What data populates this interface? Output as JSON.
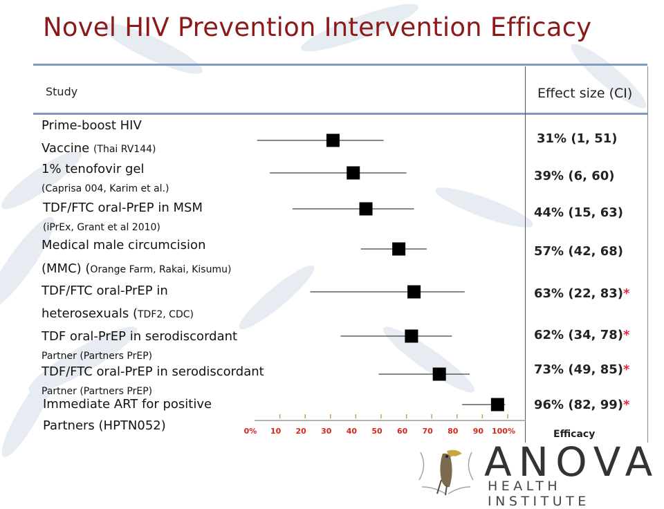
{
  "title": "Novel HIV Prevention Intervention Efficacy",
  "columns": {
    "study": "Study",
    "effect": "Effect size (CI)"
  },
  "studies": [
    {
      "line1": "Prime-boost HIV",
      "line2_main": "Vaccine ",
      "line2_sub": "(Thai RV144)",
      "effect": "31% (1, 51)",
      "star": ""
    },
    {
      "line1": "1% tenofovir gel",
      "line2_main": "",
      "line2_sub": "(Caprisa 004, Karim et al.)",
      "effect": "39% (6, 60)",
      "star": ""
    },
    {
      "line1": "TDF/FTC oral-PrEP in MSM",
      "line2_main": "",
      "line2_sub": "(iPrEx, Grant et al 2010)",
      "effect": "44% (15, 63)",
      "star": ""
    },
    {
      "line1": "Medical male circumcision",
      "line2_main": "(MMC) (",
      "line2_sub": "Orange Farm, Rakai, Kisumu)",
      "effect": "57% (42, 68)",
      "star": ""
    },
    {
      "line1": "TDF/FTC oral-PrEP in",
      "line2_main": "heterosexuals (",
      "line2_sub": "TDF2, CDC)",
      "effect": "63% (22, 83)",
      "star": "*"
    },
    {
      "line1": "TDF oral-PrEP in serodiscordant",
      "line2_main": "",
      "line2_sub": "Partner (Partners PrEP)",
      "effect": "62% (34, 78)",
      "star": "*"
    },
    {
      "line1": "TDF/FTC oral-PrEP in serodiscordant",
      "line2_main": "",
      "line2_sub": "Partner (Partners PrEP)",
      "effect": "73% (49, 85)",
      "star": "*"
    },
    {
      "line1": "Immediate ART for positive",
      "line2_main": "Partners (HPTN052)",
      "line2_sub": "",
      "effect": "96% (82, 99)",
      "star": "*"
    }
  ],
  "chart_data": {
    "type": "forest",
    "xlabel": "Efficacy",
    "xlim": [
      0,
      100
    ],
    "ticks": [
      "0%",
      "10",
      "20",
      "30",
      "40",
      "50",
      "60",
      "70",
      "80",
      "90",
      "100%"
    ],
    "tick_values": [
      0,
      10,
      20,
      30,
      40,
      50,
      60,
      70,
      80,
      90,
      100
    ],
    "points": [
      {
        "estimate": 31,
        "low": 1,
        "high": 51
      },
      {
        "estimate": 39,
        "low": 6,
        "high": 60
      },
      {
        "estimate": 44,
        "low": 15,
        "high": 63
      },
      {
        "estimate": 57,
        "low": 42,
        "high": 68
      },
      {
        "estimate": 63,
        "low": 22,
        "high": 83
      },
      {
        "estimate": 62,
        "low": 34,
        "high": 78
      },
      {
        "estimate": 73,
        "low": 49,
        "high": 85
      },
      {
        "estimate": 96,
        "low": 82,
        "high": 99
      }
    ]
  },
  "logo": {
    "name": "ANOVA",
    "tagline": "HEALTH INSTITUTE"
  },
  "colors": {
    "title": "#8b1a1a",
    "rule": "#7f9bc4",
    "star": "#e3263e",
    "tick": "#d9261c"
  }
}
